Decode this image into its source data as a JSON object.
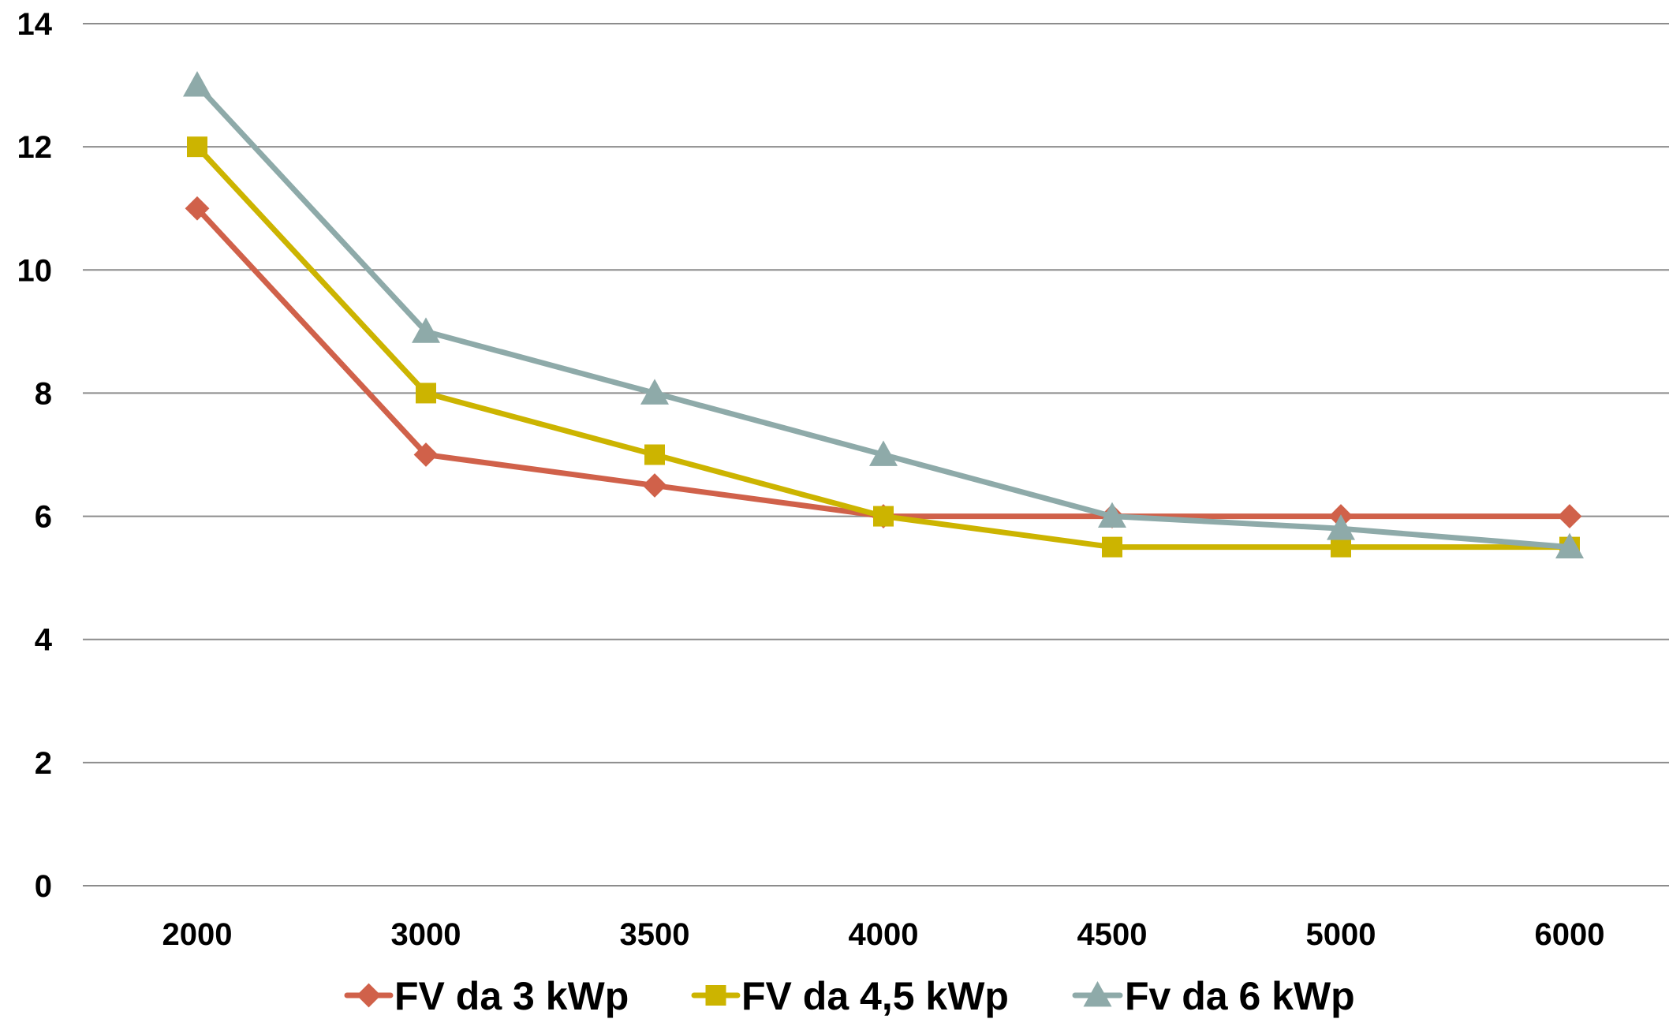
{
  "chart_data": {
    "type": "line",
    "title": "",
    "xlabel": "",
    "ylabel": "",
    "categories": [
      "2000",
      "3000",
      "3500",
      "4000",
      "4500",
      "5000",
      "6000"
    ],
    "ylim": [
      0,
      14
    ],
    "yticks": [
      0,
      2,
      4,
      6,
      8,
      10,
      12,
      14
    ],
    "grid": true,
    "legend_position": "bottom",
    "series": [
      {
        "name": "FV da 3 kWp",
        "color": "#d0614a",
        "marker": "diamond",
        "values": [
          11,
          7,
          6.5,
          6,
          6,
          6,
          6
        ]
      },
      {
        "name": "FV da 4,5 kWp",
        "color": "#ccb400",
        "marker": "square",
        "values": [
          12,
          8,
          7,
          6,
          5.5,
          5.5,
          5.5
        ]
      },
      {
        "name": "Fv da 6 kWp",
        "color": "#8eaaa9",
        "marker": "triangle",
        "values": [
          13,
          9,
          8,
          7,
          6,
          5.8,
          5.5
        ]
      }
    ]
  }
}
